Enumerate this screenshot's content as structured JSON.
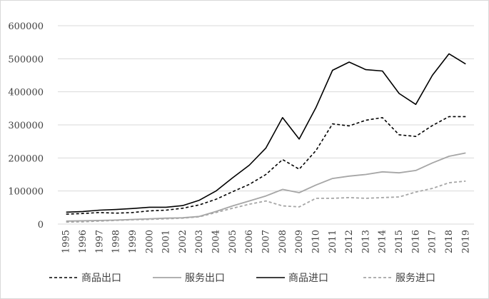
{
  "chart_data": {
    "type": "line",
    "x": [
      "1995",
      "1996",
      "1997",
      "1998",
      "1999",
      "2000",
      "2001",
      "2002",
      "2003",
      "2004",
      "2005",
      "2006",
      "2007",
      "2008",
      "2009",
      "2010",
      "2011",
      "2012",
      "2013",
      "2014",
      "2015",
      "2016",
      "2017",
      "2018",
      "2019"
    ],
    "ylim": [
      0,
      600000
    ],
    "yticks": [
      0,
      100000,
      200000,
      300000,
      400000,
      500000,
      600000
    ],
    "ytick_labels": [
      "0",
      "100000",
      "200000",
      "300000",
      "400000",
      "500000",
      "600000"
    ],
    "grid": "horizontal",
    "legend_position": "bottom",
    "series": [
      {
        "name": "商品出口",
        "color": "#000000",
        "style": "dashed",
        "values": [
          30000,
          32000,
          35000,
          33000,
          35000,
          40000,
          42000,
          48000,
          58000,
          75000,
          98000,
          120000,
          150000,
          195000,
          166000,
          222000,
          303000,
          297000,
          314000,
          322000,
          270000,
          265000,
          298000,
          325000,
          325000
        ]
      },
      {
        "name": "服务出口",
        "color": "#a6a6a6",
        "style": "solid",
        "values": [
          9000,
          10000,
          11000,
          12000,
          14000,
          16000,
          18000,
          19000,
          23000,
          38000,
          55000,
          70000,
          85000,
          105000,
          95000,
          118000,
          138000,
          145000,
          150000,
          158000,
          155000,
          162000,
          185000,
          205000,
          215000
        ]
      },
      {
        "name": "商品进口",
        "color": "#000000",
        "style": "solid",
        "values": [
          36000,
          38000,
          42000,
          44000,
          47000,
          51000,
          51000,
          56000,
          72000,
          100000,
          140000,
          178000,
          230000,
          322000,
          257000,
          352000,
          465000,
          490000,
          467000,
          463000,
          395000,
          362000,
          450000,
          515000,
          484000
        ]
      },
      {
        "name": "服务进口",
        "color": "#a6a6a6",
        "style": "dashed",
        "values": [
          6000,
          7000,
          9000,
          11000,
          13000,
          14000,
          16000,
          18000,
          22000,
          35000,
          48000,
          60000,
          70000,
          55000,
          52000,
          78000,
          78000,
          80000,
          78000,
          80000,
          82000,
          97000,
          108000,
          125000,
          130000
        ]
      }
    ]
  }
}
